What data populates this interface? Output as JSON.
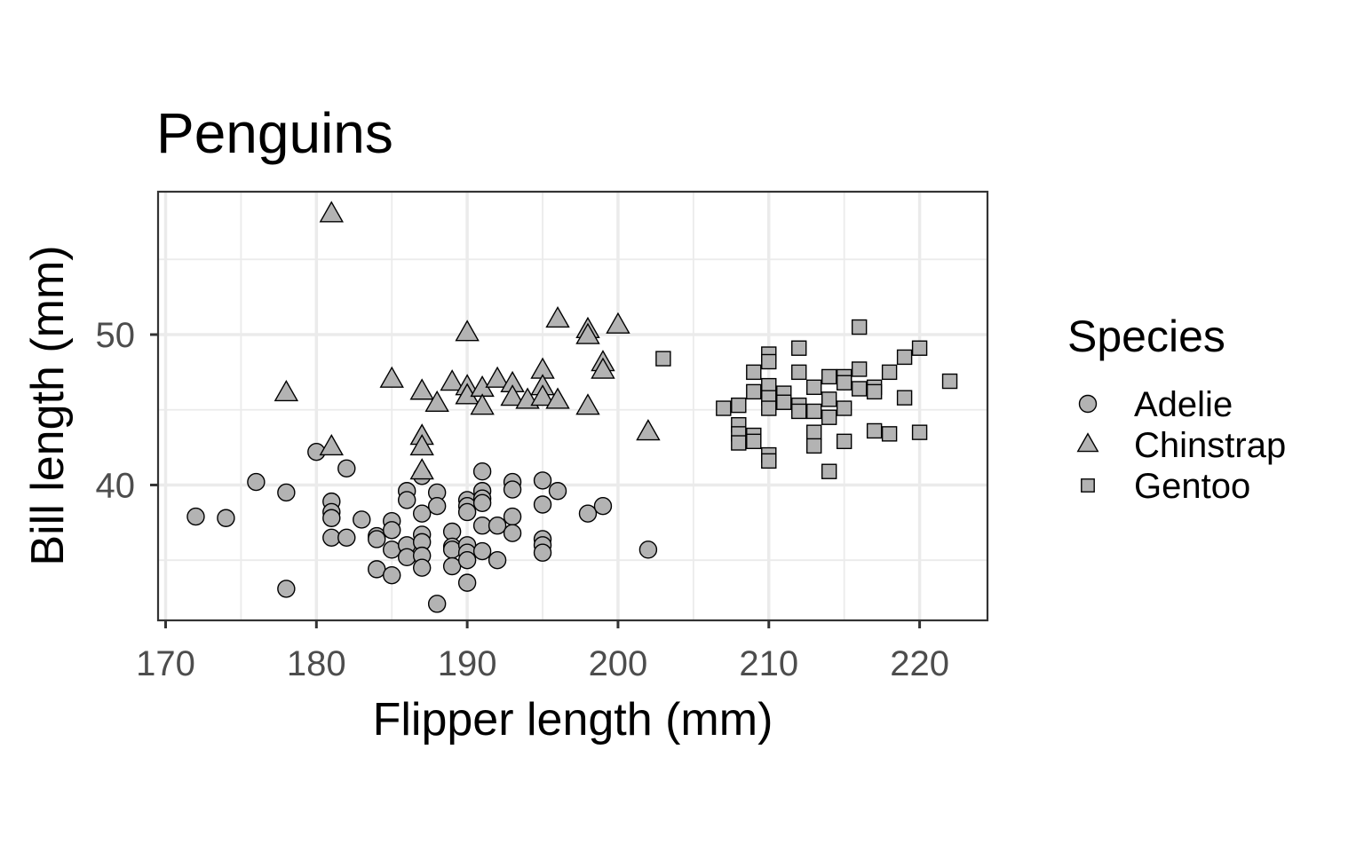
{
  "chart_data": {
    "type": "scatter",
    "title": "Penguins",
    "xlabel": "Flipper length (mm)",
    "ylabel": "Bill length (mm)",
    "xlim": [
      169.5,
      224.5
    ],
    "ylim": [
      31,
      59.5
    ],
    "x_ticks": [
      170,
      180,
      190,
      200,
      210,
      220
    ],
    "y_ticks": [
      40,
      50
    ],
    "x_tick_labels": [
      "170",
      "180",
      "190",
      "200",
      "210",
      "220"
    ],
    "y_tick_labels": [
      "40",
      "50"
    ],
    "grid": true,
    "legend": {
      "title": "Species",
      "placement": "right"
    },
    "point_color": "#b3b3b3",
    "series": [
      {
        "name": "Adelie",
        "shape": "circle",
        "points": [
          [
            172,
            37.9
          ],
          [
            174,
            37.8
          ],
          [
            176,
            40.2
          ],
          [
            178,
            39.5
          ],
          [
            178,
            33.1
          ],
          [
            180,
            42.2
          ],
          [
            181,
            38.9
          ],
          [
            181,
            38.2
          ],
          [
            181,
            37.8
          ],
          [
            181,
            36.5
          ],
          [
            182,
            41.1
          ],
          [
            182,
            36.5
          ],
          [
            183,
            37.7
          ],
          [
            184,
            36.6
          ],
          [
            184,
            36.4
          ],
          [
            184,
            34.4
          ],
          [
            185,
            37.6
          ],
          [
            185,
            37.0
          ],
          [
            185,
            35.7
          ],
          [
            185,
            34.0
          ],
          [
            186,
            39.6
          ],
          [
            186,
            39.0
          ],
          [
            186,
            36.0
          ],
          [
            186,
            35.2
          ],
          [
            187,
            40.6
          ],
          [
            187,
            38.1
          ],
          [
            187,
            36.7
          ],
          [
            187,
            36.2
          ],
          [
            187,
            35.3
          ],
          [
            187,
            34.5
          ],
          [
            188,
            39.5
          ],
          [
            188,
            38.6
          ],
          [
            188,
            32.1
          ],
          [
            189,
            36.9
          ],
          [
            189,
            35.9
          ],
          [
            189,
            35.7
          ],
          [
            189,
            34.6
          ],
          [
            190,
            39.0
          ],
          [
            190,
            38.6
          ],
          [
            190,
            38.2
          ],
          [
            190,
            36.0
          ],
          [
            190,
            35.5
          ],
          [
            190,
            35.0
          ],
          [
            190,
            33.5
          ],
          [
            191,
            40.9
          ],
          [
            191,
            39.6
          ],
          [
            191,
            39.1
          ],
          [
            191,
            38.8
          ],
          [
            191,
            37.3
          ],
          [
            191,
            35.6
          ],
          [
            192,
            37.3
          ],
          [
            192,
            35.0
          ],
          [
            193,
            40.2
          ],
          [
            193,
            39.7
          ],
          [
            193,
            37.9
          ],
          [
            193,
            36.8
          ],
          [
            195,
            40.3
          ],
          [
            195,
            38.7
          ],
          [
            195,
            36.4
          ],
          [
            195,
            36.0
          ],
          [
            195,
            35.5
          ],
          [
            196,
            39.6
          ],
          [
            198,
            38.1
          ],
          [
            199,
            38.6
          ],
          [
            202,
            35.7
          ]
        ]
      },
      {
        "name": "Chinstrap",
        "shape": "triangle",
        "points": [
          [
            178,
            46.1
          ],
          [
            181,
            58.0
          ],
          [
            181,
            42.5
          ],
          [
            185,
            47.0
          ],
          [
            187,
            46.2
          ],
          [
            187,
            43.2
          ],
          [
            187,
            42.5
          ],
          [
            187,
            40.9
          ],
          [
            188,
            45.4
          ],
          [
            189,
            46.8
          ],
          [
            190,
            50.1
          ],
          [
            190,
            46.5
          ],
          [
            190,
            45.9
          ],
          [
            191,
            46.4
          ],
          [
            191,
            45.2
          ],
          [
            192,
            47.0
          ],
          [
            193,
            46.7
          ],
          [
            193,
            45.8
          ],
          [
            194,
            45.6
          ],
          [
            195,
            47.6
          ],
          [
            195,
            46.5
          ],
          [
            195,
            45.8
          ],
          [
            196,
            51.0
          ],
          [
            196,
            45.6
          ],
          [
            198,
            50.3
          ],
          [
            198,
            49.9
          ],
          [
            198,
            45.2
          ],
          [
            199,
            48.1
          ],
          [
            199,
            47.6
          ],
          [
            200,
            50.6
          ],
          [
            202,
            43.5
          ]
        ]
      },
      {
        "name": "Gentoo",
        "shape": "square",
        "points": [
          [
            203,
            48.4
          ],
          [
            207,
            45.1
          ],
          [
            208,
            45.3
          ],
          [
            208,
            44.0
          ],
          [
            208,
            43.4
          ],
          [
            208,
            42.8
          ],
          [
            209,
            47.5
          ],
          [
            209,
            46.2
          ],
          [
            209,
            43.3
          ],
          [
            209,
            42.9
          ],
          [
            210,
            48.7
          ],
          [
            210,
            48.2
          ],
          [
            210,
            46.6
          ],
          [
            210,
            45.8
          ],
          [
            210,
            45.1
          ],
          [
            210,
            42.0
          ],
          [
            210,
            41.6
          ],
          [
            211,
            46.1
          ],
          [
            211,
            45.5
          ],
          [
            212,
            49.1
          ],
          [
            212,
            47.5
          ],
          [
            212,
            45.3
          ],
          [
            212,
            44.9
          ],
          [
            213,
            46.5
          ],
          [
            213,
            44.9
          ],
          [
            213,
            43.5
          ],
          [
            213,
            42.6
          ],
          [
            214,
            47.2
          ],
          [
            214,
            45.7
          ],
          [
            214,
            44.5
          ],
          [
            214,
            40.9
          ],
          [
            215,
            47.2
          ],
          [
            215,
            46.8
          ],
          [
            215,
            45.1
          ],
          [
            215,
            42.9
          ],
          [
            216,
            50.5
          ],
          [
            216,
            47.7
          ],
          [
            216,
            46.4
          ],
          [
            217,
            46.5
          ],
          [
            217,
            46.2
          ],
          [
            217,
            43.6
          ],
          [
            218,
            47.5
          ],
          [
            218,
            43.4
          ],
          [
            219,
            48.5
          ],
          [
            219,
            45.8
          ],
          [
            220,
            49.1
          ],
          [
            220,
            43.5
          ],
          [
            222,
            46.9
          ]
        ]
      }
    ]
  }
}
